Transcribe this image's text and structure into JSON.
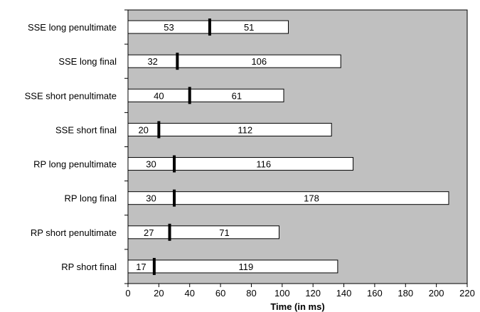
{
  "chart_data": {
    "type": "bar",
    "orientation": "horizontal",
    "stacked": true,
    "xlabel": "Time (in ms)",
    "xlim": [
      0,
      220
    ],
    "xticks": [
      0,
      20,
      40,
      60,
      80,
      100,
      120,
      140,
      160,
      180,
      200,
      220
    ],
    "categories": [
      "SSE long penultimate",
      "SSE long final",
      "SSE short penultimate",
      "SSE short final",
      "RP long penultimate",
      "RP long final",
      "RP short penultimate",
      "RP short final"
    ],
    "series": [
      {
        "values": [
          53,
          32,
          40,
          20,
          30,
          30,
          27,
          17
        ]
      },
      {
        "values": [
          51,
          106,
          61,
          112,
          116,
          178,
          71,
          119
        ]
      }
    ],
    "colors": {
      "plot_background": "#c0c0c0",
      "bar_fill": "#ffffff",
      "marker": "#000000"
    }
  }
}
